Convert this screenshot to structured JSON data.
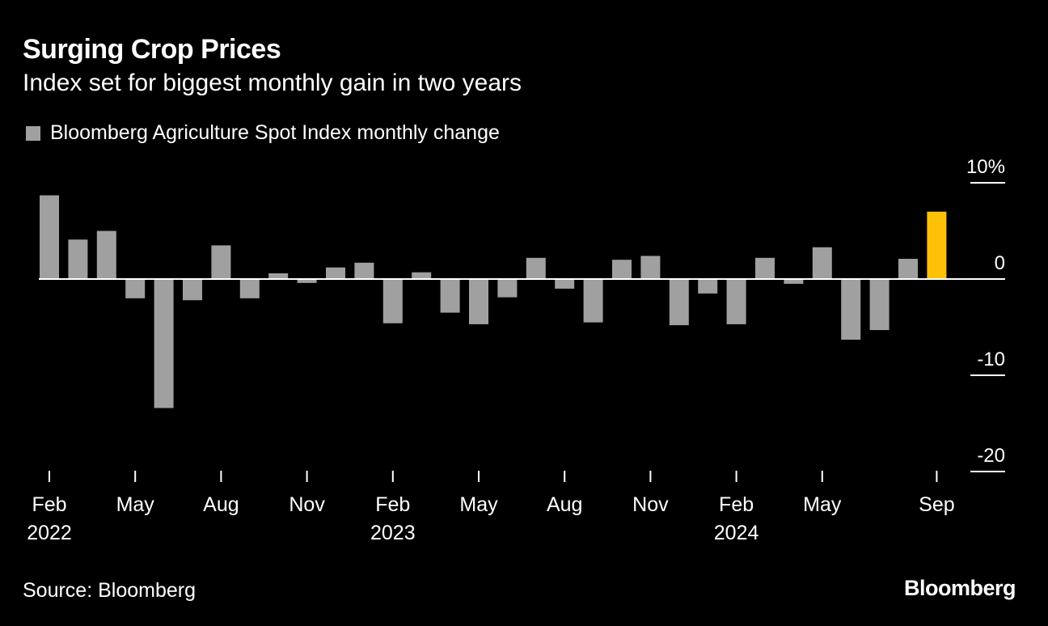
{
  "title": "Surging Crop Prices",
  "subtitle": "Index set for biggest monthly gain in two years",
  "source": "Source: Bloomberg",
  "brand": "Bloomberg",
  "colors": {
    "background": "#000000",
    "bar": "#a0a0a0",
    "highlight": "#ffc107",
    "text": "#ffffff"
  },
  "chart_data": {
    "type": "bar",
    "legend": [
      {
        "label": "Bloomberg Agriculture Spot Index monthly change",
        "color": "#a0a0a0"
      }
    ],
    "legend_position": "top-left",
    "ylim": [
      -20,
      10
    ],
    "yticks": [
      {
        "value": 10,
        "label": "10%"
      },
      {
        "value": 0,
        "label": "0"
      },
      {
        "value": -10,
        "label": "-10"
      },
      {
        "value": -20,
        "label": "-20"
      }
    ],
    "grid": false,
    "categories": [
      "2022-02",
      "2022-03",
      "2022-04",
      "2022-05",
      "2022-06",
      "2022-07",
      "2022-08",
      "2022-09",
      "2022-10",
      "2022-11",
      "2022-12",
      "2023-01",
      "2023-02",
      "2023-03",
      "2023-04",
      "2023-05",
      "2023-06",
      "2023-07",
      "2023-08",
      "2023-09",
      "2023-10",
      "2023-11",
      "2023-12",
      "2024-01",
      "2024-02",
      "2024-03",
      "2024-04",
      "2024-05",
      "2024-06",
      "2024-07",
      "2024-08",
      "2024-09"
    ],
    "values": [
      8.7,
      4.1,
      5.0,
      -2.0,
      -13.4,
      -2.2,
      3.5,
      -2.0,
      0.6,
      -0.4,
      1.2,
      1.7,
      -4.6,
      0.7,
      -3.5,
      -4.7,
      -1.9,
      2.2,
      -1.0,
      -4.5,
      2.0,
      2.4,
      -4.8,
      -1.5,
      -4.7,
      2.2,
      -0.5,
      3.3,
      -6.3,
      -5.3,
      2.1,
      7.0
    ],
    "highlight_index": 31,
    "xticks": [
      {
        "index": 0,
        "label": "Feb",
        "sublabel": "2022"
      },
      {
        "index": 3,
        "label": "May"
      },
      {
        "index": 6,
        "label": "Aug"
      },
      {
        "index": 9,
        "label": "Nov"
      },
      {
        "index": 12,
        "label": "Feb",
        "sublabel": "2023"
      },
      {
        "index": 15,
        "label": "May"
      },
      {
        "index": 18,
        "label": "Aug"
      },
      {
        "index": 21,
        "label": "Nov"
      },
      {
        "index": 24,
        "label": "Feb",
        "sublabel": "2024"
      },
      {
        "index": 27,
        "label": "May"
      },
      {
        "index": 31,
        "label": "Sep"
      }
    ]
  }
}
